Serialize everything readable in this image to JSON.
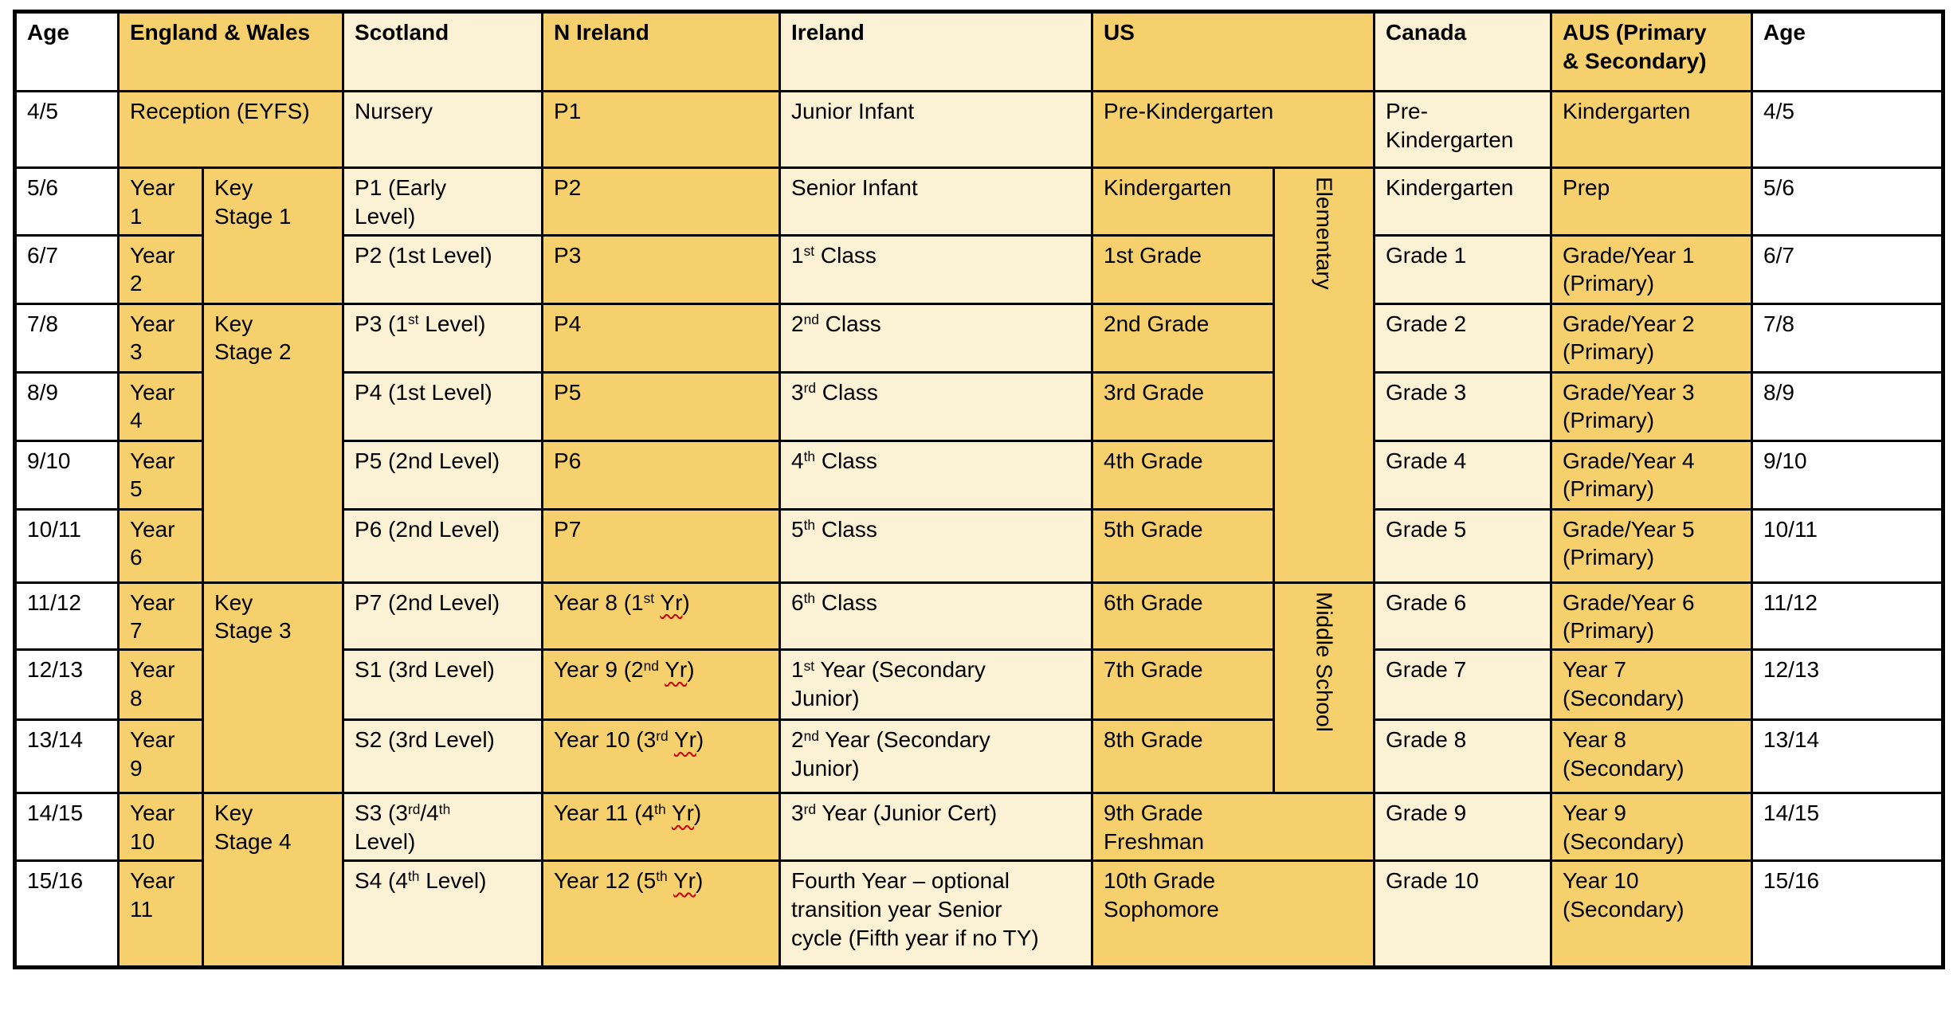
{
  "colors": {
    "gold": "#F5D06C",
    "cream": "#FBF2D5",
    "border": "#000000",
    "spellcheck_red": "#CC0000",
    "background": "#FFFFFF"
  },
  "table": {
    "headers": {
      "age_left": "Age",
      "england_wales": "England & Wales",
      "scotland": "Scotland",
      "n_ireland": "N Ireland",
      "ireland": "Ireland",
      "us": "US",
      "canada": "Canada",
      "aus": "AUS (Primary<br>& Secondary)",
      "age_right": "Age"
    },
    "rows": [
      {
        "age": "4/5",
        "england_wales": "Reception (EYFS)",
        "scotland": "Nursery",
        "n_ireland": "P1",
        "ireland": "Junior Infant",
        "us": "Pre-Kindergarten",
        "canada": "Pre-<br>Kindergarten",
        "aus": "Kindergarten"
      },
      {
        "age": "5/6",
        "ew_year": "Year<br>1",
        "ew_key_stage": "Key<br>Stage 1",
        "scotland": "P1 (Early<br>Level)",
        "n_ireland": "P2",
        "ireland": "Senior Infant",
        "us_grade": "Kindergarten",
        "us_stage": "Elementary",
        "canada": "Kindergarten",
        "aus": "Prep"
      },
      {
        "age": "6/7",
        "ew_year": "Year<br>2",
        "scotland": "P2 (1st Level)",
        "n_ireland": "P3",
        "ireland": "1<sup>st</sup> Class",
        "us_grade": "1st Grade",
        "canada": "Grade 1",
        "aus": "Grade/Year 1<br>(Primary)"
      },
      {
        "age": "7/8",
        "ew_year": "Year<br>3",
        "ew_key_stage": "Key<br>Stage 2",
        "scotland": "P3 (1<sup>st</sup> Level)",
        "n_ireland": "P4",
        "ireland": "2<sup>nd</sup> Class",
        "us_grade": "2nd Grade",
        "canada": "Grade 2",
        "aus": "Grade/Year 2<br>(Primary)"
      },
      {
        "age": "8/9",
        "ew_year": "Year<br>4",
        "scotland": "P4 (1st Level)",
        "n_ireland": "P5",
        "ireland": "3<sup>rd</sup> Class",
        "us_grade": "3rd Grade",
        "canada": "Grade 3",
        "aus": "Grade/Year 3<br>(Primary)"
      },
      {
        "age": "9/10",
        "ew_year": "Year<br>5",
        "scotland": "P5 (2nd Level)",
        "n_ireland": "P6",
        "ireland": "4<sup>th</sup> Class",
        "us_grade": "4th Grade",
        "canada": "Grade 4",
        "aus": "Grade/Year 4<br>(Primary)"
      },
      {
        "age": "10/11",
        "ew_year": "Year<br>6",
        "scotland": "P6 (2nd Level)",
        "n_ireland": "P7",
        "ireland": "5<sup>th</sup> Class",
        "us_grade": "5th Grade",
        "canada": "Grade 5",
        "aus": "Grade/Year 5<br>(Primary)"
      },
      {
        "age": "11/12",
        "ew_year": "Year<br>7",
        "ew_key_stage": "Key<br>Stage 3",
        "scotland": "P7 (2nd Level)",
        "n_ireland": "Year 8 (1<sup>st</sup> <span class='misspell'>Yr</span>)",
        "ireland": "6<sup>th</sup> Class",
        "us_grade": "6th Grade",
        "us_stage": "Middle School",
        "canada": "Grade 6",
        "aus": "Grade/Year 6<br>(Primary)"
      },
      {
        "age": "12/13",
        "ew_year": "Year<br>8",
        "scotland": "S1 (3rd Level)",
        "n_ireland": "Year 9 (2<sup>nd</sup> <span class='misspell'>Yr</span>)",
        "ireland": "1<sup>st</sup> Year (Secondary<br>Junior)",
        "us_grade": "7th Grade",
        "canada": "Grade 7",
        "aus": "Year 7<br>(Secondary)"
      },
      {
        "age": "13/14",
        "ew_year": "Year<br>9",
        "scotland": "S2 (3rd Level)",
        "n_ireland": "Year 10 (3<sup>rd</sup> <span class='misspell'>Yr</span>)",
        "ireland": "2<sup>nd</sup> Year (Secondary<br>Junior)",
        "us_grade": "8th Grade",
        "canada": "Grade 8",
        "aus": "Year 8<br>(Secondary)"
      },
      {
        "age": "14/15",
        "ew_year": "Year<br>10",
        "ew_key_stage": "Key<br>Stage 4",
        "scotland": "S3 (3<sup>rd</sup>/4<sup>th</sup><br>Level)",
        "n_ireland": "Year 11 (4<sup>th</sup> <span class='misspell'>Yr</span>)",
        "ireland": "3<sup>rd</sup> Year (Junior Cert)",
        "us": "9th Grade<br>Freshman",
        "canada": "Grade 9",
        "aus": "Year 9<br>(Secondary)"
      },
      {
        "age": "15/16",
        "ew_year": "Year<br>11",
        "scotland": "S4 (4<sup>th</sup> Level)",
        "n_ireland": "Year 12 (5<sup>th</sup> <span class='misspell'>Yr</span>)",
        "ireland": "Fourth Year – optional<br>transition year Senior<br>cycle (Fifth year if no TY)",
        "us": "10th Grade<br>Sophomore",
        "canada": "Grade 10",
        "aus": "Year 10<br>(Secondary)"
      }
    ]
  }
}
